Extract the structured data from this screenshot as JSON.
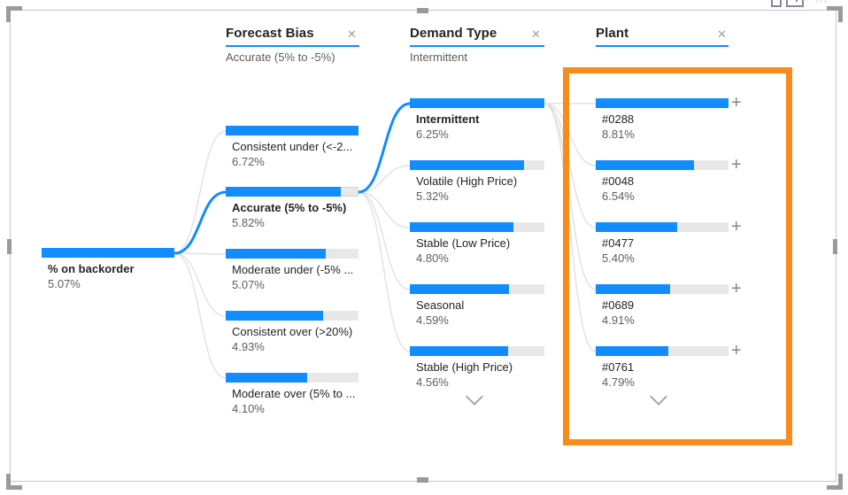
{
  "colors": {
    "accent_blue": "#118DFF",
    "bar_track_gray": "#E8E8E8",
    "highlight_orange": "#F68C1E",
    "connector_gray": "#E1E1E1",
    "label_text": "#252423",
    "value_text": "#605E5C"
  },
  "icons": {
    "close": "✕",
    "plus": "+",
    "more": "⋯"
  },
  "root": {
    "label": "% on backorder",
    "value": "5.07%"
  },
  "columns": [
    {
      "title": "Forecast Bias",
      "subtitle": "Accurate (5% to -5%)",
      "nodes": [
        {
          "label": "Consistent under (<-2...",
          "value": "6.72%"
        },
        {
          "label": "Accurate (5% to -5%)",
          "value": "5.82%",
          "selected": true
        },
        {
          "label": "Moderate under (-5% ...",
          "value": "5.07%"
        },
        {
          "label": "Consistent over (>20%)",
          "value": "4.93%"
        },
        {
          "label": "Moderate over (5% to ...",
          "value": "4.10%"
        }
      ]
    },
    {
      "title": "Demand Type",
      "subtitle": "Intermittent",
      "nodes": [
        {
          "label": "Intermittent",
          "value": "6.25%",
          "selected": true
        },
        {
          "label": "Volatile (High Price)",
          "value": "5.32%"
        },
        {
          "label": "Stable (Low Price)",
          "value": "4.80%"
        },
        {
          "label": "Seasonal",
          "value": "4.59%"
        },
        {
          "label": "Stable (High Price)",
          "value": "4.56%"
        }
      ]
    },
    {
      "title": "Plant",
      "subtitle": "",
      "nodes": [
        {
          "label": "#0288",
          "value": "8.81%"
        },
        {
          "label": "#0048",
          "value": "6.54%"
        },
        {
          "label": "#0477",
          "value": "5.40%"
        },
        {
          "label": "#0689",
          "value": "4.91%"
        },
        {
          "label": "#0761",
          "value": "4.79%"
        }
      ]
    }
  ]
}
